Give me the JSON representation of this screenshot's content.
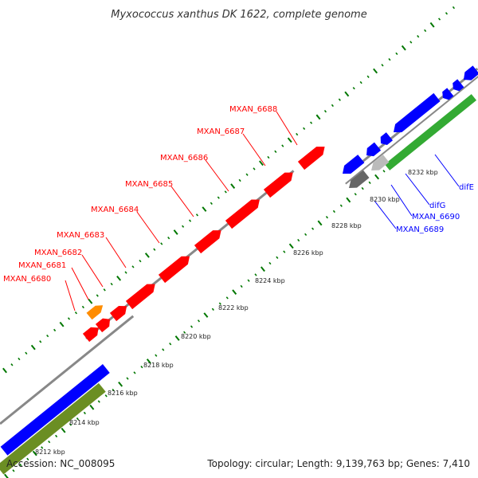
{
  "title": "Myxococcus xanthus DK 1622, complete genome",
  "footer": {
    "accession": "Accession: NC_008095",
    "topology": "Topology: circular; Length: 9,139,763 bp; Genes: 7,410"
  },
  "colors": {
    "forward_cds": "#ff0000",
    "reverse_cds": "#0000ff",
    "backbone": "#888888",
    "gc_skew_plus": "#33aa33",
    "gc_skew_dark": "#6b8e23",
    "rna": "#ff8c00",
    "other_feature": "#666666",
    "tick_mark": "#007700"
  },
  "gene_labels": [
    {
      "text": "MXAN_6680",
      "strand": "forward"
    },
    {
      "text": "MXAN_6681",
      "strand": "forward"
    },
    {
      "text": "MXAN_6682",
      "strand": "forward"
    },
    {
      "text": "MXAN_6683",
      "strand": "forward"
    },
    {
      "text": "MXAN_6684",
      "strand": "forward"
    },
    {
      "text": "MXAN_6685",
      "strand": "forward"
    },
    {
      "text": "MXAN_6686",
      "strand": "forward"
    },
    {
      "text": "MXAN_6687",
      "strand": "forward"
    },
    {
      "text": "MXAN_6688",
      "strand": "forward"
    },
    {
      "text": "MXAN_6689",
      "strand": "reverse"
    },
    {
      "text": "MXAN_6690",
      "strand": "reverse"
    },
    {
      "text": "difG",
      "strand": "reverse"
    },
    {
      "text": "difE",
      "strand": "reverse"
    }
  ],
  "ruler_labels": [
    "8212 kbp",
    "8214 kbp",
    "8216 kbp",
    "8218 kbp",
    "8220 kbp",
    "8222 kbp",
    "8224 kbp",
    "8226 kbp",
    "8228 kbp",
    "8230 kbp",
    "8232 kbp"
  ]
}
